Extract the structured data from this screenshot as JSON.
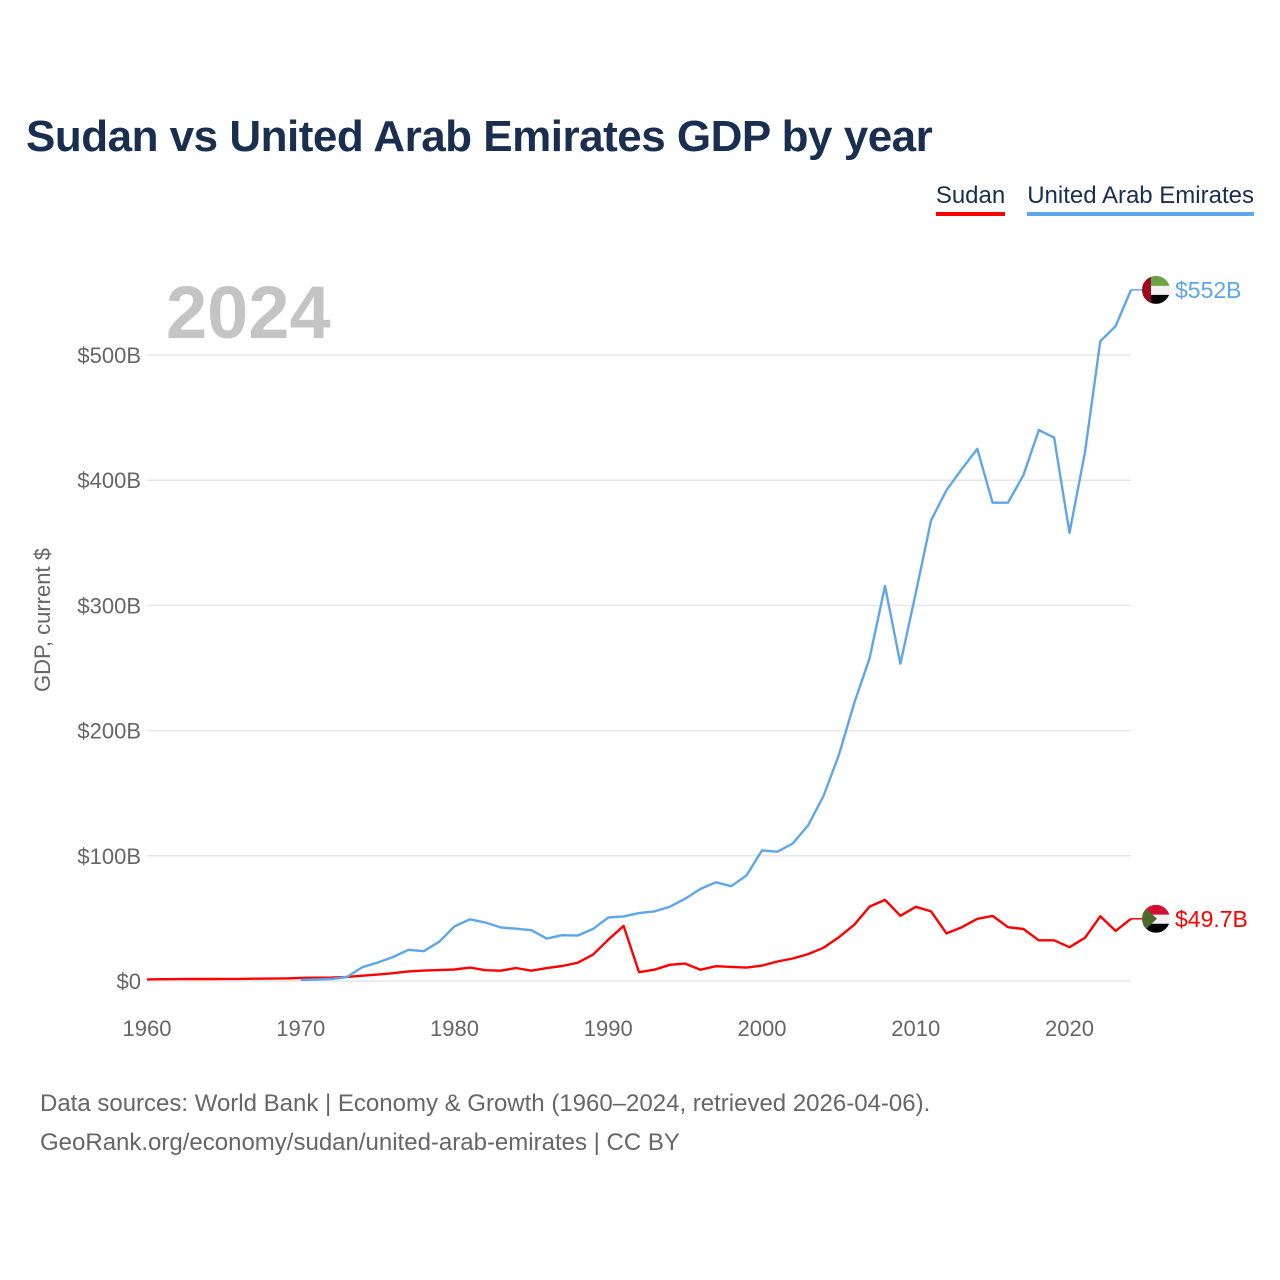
{
  "title": "Sudan vs United Arab Emirates GDP by year",
  "footer": {
    "line1": "Data sources: World Bank | Economy & Growth (1960–2024, retrieved 2026-04-06).",
    "line2": "GeoRank.org/economy/sudan/united-arab-emirates | CC BY"
  },
  "chart_data": {
    "type": "line",
    "title": "Sudan vs United Arab Emirates GDP by year",
    "year_label": "2024",
    "xlabel": "",
    "ylabel": "GDP, current $",
    "xlim": [
      1960,
      2024
    ],
    "ylim": [
      0,
      560
    ],
    "x_ticks": [
      1960,
      1970,
      1980,
      1990,
      2000,
      2010,
      2020
    ],
    "y_ticks": [
      0,
      100,
      200,
      300,
      400,
      500
    ],
    "y_tick_labels": [
      "$0",
      "$100B",
      "$200B",
      "$300B",
      "$400B",
      "$500B"
    ],
    "grid": true,
    "legend_position": "top-right",
    "units": "billion USD",
    "series": [
      {
        "name": "Sudan",
        "color": "#ff0000",
        "end_label": "$49.7B",
        "flag": "sudan-flag",
        "start_year": 1960,
        "values": [
          1.3,
          1.4,
          1.5,
          1.6,
          1.6,
          1.7,
          1.7,
          1.8,
          1.9,
          2.1,
          2.4,
          2.6,
          2.7,
          3.3,
          4.2,
          5.1,
          6.2,
          7.7,
          8.3,
          8.7,
          9.2,
          10.7,
          8.6,
          8.2,
          10.4,
          8.2,
          10.3,
          12,
          14.5,
          21,
          33,
          44,
          7,
          9,
          12.9,
          13.9,
          9,
          11.8,
          11.3,
          10.7,
          12.3,
          15.6,
          18,
          21.5,
          26.5,
          35,
          45,
          59.4,
          64.8,
          52.1,
          59.3,
          55.6,
          38,
          43,
          49.7,
          52,
          43,
          41.5,
          32.5,
          32.5,
          27,
          34.4,
          51.7,
          40,
          49.7
        ]
      },
      {
        "name": "United Arab Emirates",
        "color": "#5ea6ea",
        "end_label": "$552B",
        "flag": "uae-flag",
        "start_year": 1970,
        "values": [
          0.9,
          1.2,
          1.6,
          3.2,
          11,
          14.7,
          19.2,
          24.9,
          23.8,
          31.3,
          43.6,
          49.3,
          46.7,
          42.8,
          41.8,
          40.6,
          33.9,
          36.6,
          36.3,
          41.5,
          50.7,
          51.6,
          54.2,
          55.6,
          59.3,
          65.7,
          73.6,
          78.8,
          75.7,
          84.4,
          104.3,
          103.3,
          109.8,
          124.3,
          147.8,
          180.6,
          222.1,
          257.9,
          315.5,
          253.5,
          310,
          368,
          392,
          409,
          425,
          382,
          382,
          404,
          440,
          434,
          358,
          422,
          511,
          523,
          552
        ]
      }
    ]
  }
}
